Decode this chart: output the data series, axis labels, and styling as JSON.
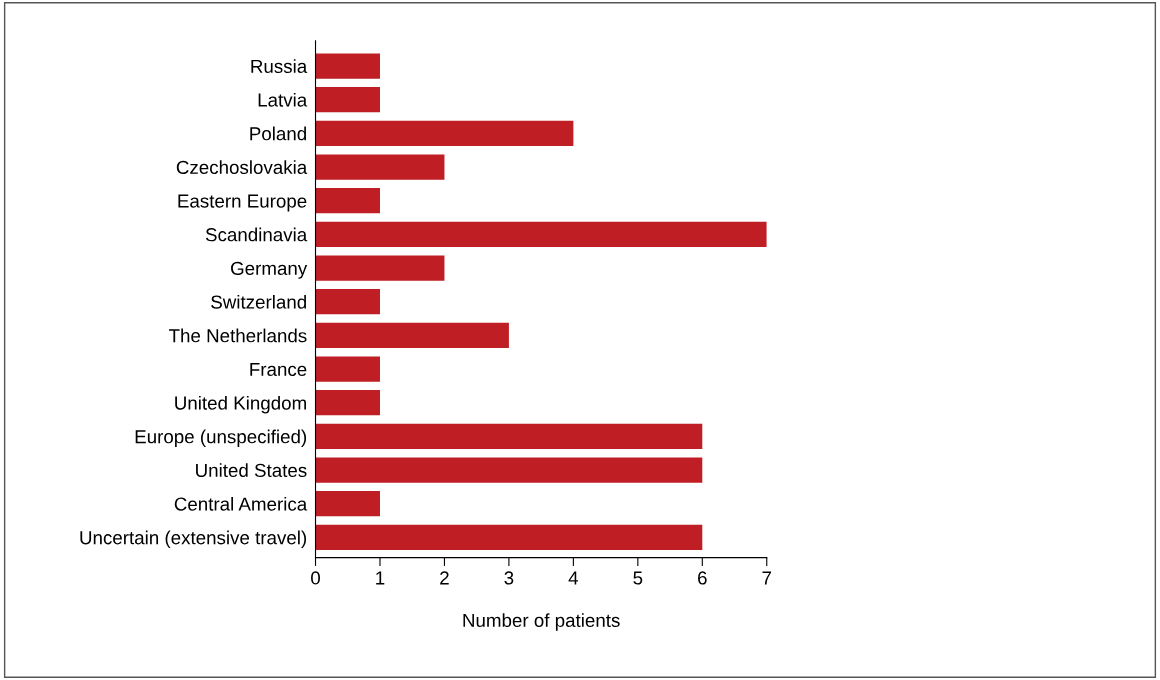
{
  "chart_data": {
    "type": "bar",
    "orientation": "horizontal",
    "xlabel": "Number of patients",
    "categories": [
      "Russia",
      "Latvia",
      "Poland",
      "Czechoslovakia",
      "Eastern Europe",
      "Scandinavia",
      "Germany",
      "Switzerland",
      "The Netherlands",
      "France",
      "United Kingdom",
      "Europe (unspecified)",
      "United States",
      "Central America",
      "Uncertain (extensive travel)"
    ],
    "values": [
      1,
      1,
      4,
      2,
      1,
      7,
      2,
      1,
      3,
      1,
      1,
      6,
      6,
      1,
      6
    ],
    "color": "#be1e24",
    "xlim": [
      0,
      7
    ],
    "xticks": [
      0,
      1,
      2,
      3,
      4,
      5,
      6,
      7
    ],
    "grid": false
  }
}
